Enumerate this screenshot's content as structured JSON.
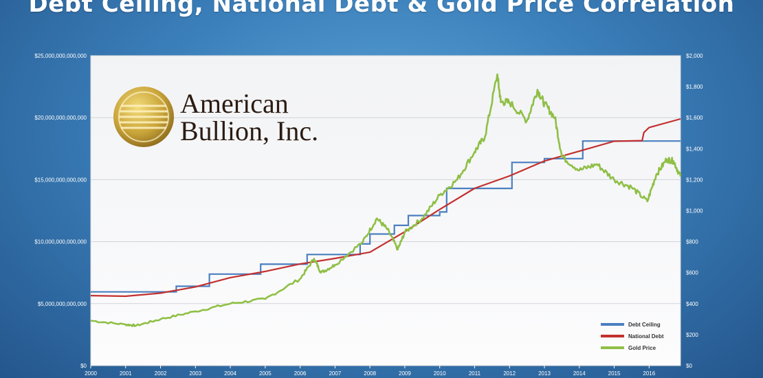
{
  "title": "Debt Ceiling, National Debt & Gold Price Correlation",
  "logo": {
    "line1": "American",
    "line2": "Bullion, Inc."
  },
  "colors": {
    "debt_ceiling": "#4a7fc0",
    "national_debt": "#c2302e",
    "gold_price": "#8fbf45",
    "gold": "#c9a43a"
  },
  "chart_data": {
    "type": "line",
    "x_range": [
      2000,
      2016.9
    ],
    "xticks": [
      "2000",
      "2001",
      "2002",
      "2003",
      "2004",
      "2005",
      "2006",
      "2007",
      "2008",
      "2009",
      "2010",
      "2011",
      "2012",
      "2013",
      "2014",
      "2015",
      "2016"
    ],
    "y_left": {
      "range": [
        0,
        25000000000000
      ],
      "ticks": [
        "$0",
        "$5,000,000,000,000",
        "$10,000,000,000,000",
        "$15,000,000,000,000",
        "$20,000,000,000,000",
        "$25,000,000,000,000"
      ]
    },
    "y_right": {
      "range": [
        0,
        2000
      ],
      "ticks": [
        "$0",
        "$200",
        "$400",
        "$600",
        "$800",
        "$1,000",
        "$1,200",
        "$1,400",
        "$1,600",
        "$1,800",
        "$2,000"
      ]
    },
    "grid": true,
    "legend_position": "bottom-right",
    "series": [
      {
        "name": "Debt Ceiling",
        "axis": "left",
        "x": [
          2000,
          2002.45,
          2003.4,
          2004.87,
          2006.2,
          2007.72,
          2008.0,
          2008.7,
          2009.1,
          2010.0,
          2010.2,
          2012.07,
          2013.0,
          2014.1,
          2016.9
        ],
        "y": [
          5950000000000,
          6400000000000,
          7384000000000,
          8184000000000,
          8965000000000,
          9815000000000,
          10615000000000,
          11315000000000,
          12104000000000,
          12394000000000,
          14294000000000,
          16394000000000,
          16699000000000,
          18113000000000,
          18113000000000
        ]
      },
      {
        "name": "National Debt",
        "axis": "left",
        "x": [
          2000,
          2001,
          2002,
          2003,
          2004,
          2005,
          2006,
          2007,
          2008,
          2009,
          2010,
          2011,
          2012,
          2013,
          2014,
          2015,
          2015.8,
          2015.85,
          2016,
          2016.9
        ],
        "y": [
          5650000000000,
          5600000000000,
          5850000000000,
          6350000000000,
          7100000000000,
          7600000000000,
          8200000000000,
          8650000000000,
          9150000000000,
          10800000000000,
          12600000000000,
          14300000000000,
          15300000000000,
          16500000000000,
          17300000000000,
          18100000000000,
          18150000000000,
          18800000000000,
          19200000000000,
          19900000000000
        ]
      },
      {
        "name": "Gold Price",
        "axis": "right",
        "x": [
          2000,
          2001,
          2001.3,
          2002,
          2003,
          2004,
          2005,
          2006,
          2006.4,
          2006.6,
          2007,
          2007.8,
          2008.2,
          2008.5,
          2008.8,
          2009,
          2009.5,
          2010,
          2010.5,
          2011,
          2011.3,
          2011.65,
          2011.75,
          2012,
          2012.5,
          2012.8,
          2013,
          2013.3,
          2013.5,
          2014,
          2014.5,
          2015,
          2015.5,
          2015.95,
          2016.2,
          2016.5,
          2016.7,
          2016.9
        ],
        "y": [
          290,
          265,
          258,
          300,
          350,
          400,
          430,
          560,
          690,
          600,
          650,
          800,
          950,
          880,
          750,
          860,
          950,
          1100,
          1200,
          1380,
          1480,
          1880,
          1700,
          1700,
          1580,
          1780,
          1690,
          1600,
          1350,
          1260,
          1300,
          1200,
          1150,
          1060,
          1230,
          1330,
          1320,
          1220
        ]
      }
    ]
  }
}
